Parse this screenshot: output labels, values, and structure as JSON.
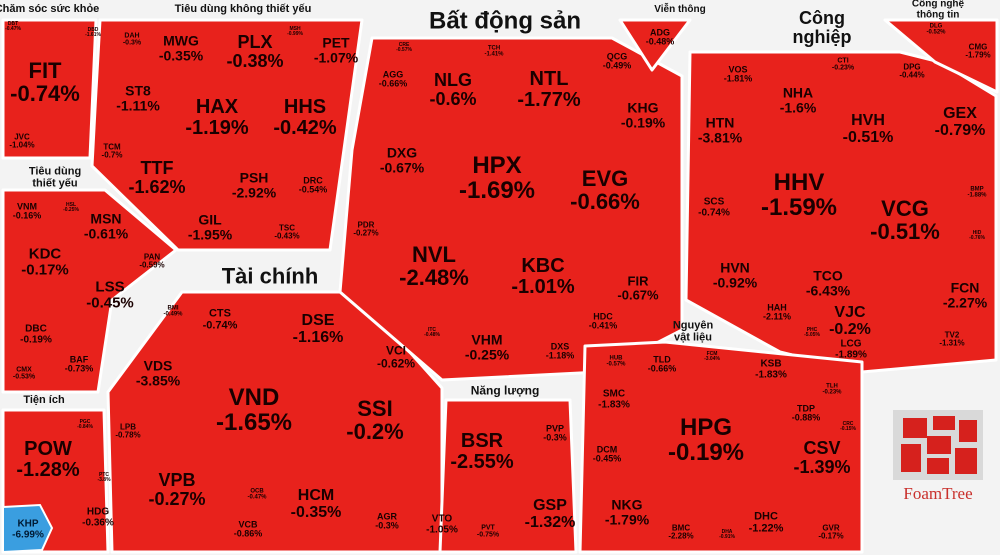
{
  "colors": {
    "down": "#e8221c",
    "up": "#3a9ee0",
    "background": "#f3f3f3"
  },
  "groups": [
    {
      "label": "Chăm sóc sức khỏe",
      "cells": [
        {
          "ticker": "FIT",
          "change": "-0.74%"
        },
        {
          "ticker": "JVC",
          "change": "-1.04%"
        },
        {
          "ticker": "DBD",
          "change": "-1.61%"
        },
        {
          "ticker": "DBT",
          "change": "-0.47%"
        }
      ]
    },
    {
      "label": "Tiêu dùng không thiết yếu",
      "cells": [
        {
          "ticker": "MWG",
          "change": "-0.35%"
        },
        {
          "ticker": "PLX",
          "change": "-0.38%"
        },
        {
          "ticker": "PET",
          "change": "-1.07%"
        },
        {
          "ticker": "DAH",
          "change": "-0.3%"
        },
        {
          "ticker": "ST8",
          "change": "-1.11%"
        },
        {
          "ticker": "HAX",
          "change": "-1.19%"
        },
        {
          "ticker": "HHS",
          "change": "-0.42%"
        },
        {
          "ticker": "TCM",
          "change": "-0.7%"
        },
        {
          "ticker": "TTF",
          "change": "-1.62%"
        },
        {
          "ticker": "PSH",
          "change": "-2.92%"
        },
        {
          "ticker": "DRC",
          "change": "-0.54%"
        },
        {
          "ticker": "GIL",
          "change": "-1.95%"
        },
        {
          "ticker": "TSC",
          "change": "-0.43%"
        },
        {
          "ticker": "MSH",
          "change": "-0.99%"
        }
      ]
    },
    {
      "label": "Tiêu dùng\nthiết yếu",
      "cells": [
        {
          "ticker": "VNM",
          "change": "-0.16%"
        },
        {
          "ticker": "HSL",
          "change": "-0.25%"
        },
        {
          "ticker": "MSN",
          "change": "-0.61%"
        },
        {
          "ticker": "KDC",
          "change": "-0.17%"
        },
        {
          "ticker": "PAN",
          "change": "-0.59%"
        },
        {
          "ticker": "LSS",
          "change": "-0.45%"
        },
        {
          "ticker": "DBC",
          "change": "-0.19%"
        },
        {
          "ticker": "BAF",
          "change": "-0.73%"
        },
        {
          "ticker": "CMX",
          "change": "-0.53%"
        }
      ]
    },
    {
      "label": "Tiện ích",
      "cells": [
        {
          "ticker": "POW",
          "change": "-1.28%"
        },
        {
          "ticker": "HDG",
          "change": "-0.36%"
        },
        {
          "ticker": "KHP",
          "change": "-6.99%"
        },
        {
          "ticker": "PGC",
          "change": "-0.84%"
        },
        {
          "ticker": "PTC",
          "change": "-3.8%"
        }
      ]
    },
    {
      "label": "Tài chính",
      "cells": [
        {
          "ticker": "BMI",
          "change": "-0.49%"
        },
        {
          "ticker": "CTS",
          "change": "-0.74%"
        },
        {
          "ticker": "DSE",
          "change": "-1.16%"
        },
        {
          "ticker": "VCI",
          "change": "-0.62%"
        },
        {
          "ticker": "VDS",
          "change": "-3.85%"
        },
        {
          "ticker": "VND",
          "change": "-1.65%"
        },
        {
          "ticker": "SSI",
          "change": "-0.2%"
        },
        {
          "ticker": "LPB",
          "change": "-0.78%"
        },
        {
          "ticker": "VPB",
          "change": "-0.27%"
        },
        {
          "ticker": "OCB",
          "change": "-0.47%"
        },
        {
          "ticker": "HCM",
          "change": "-0.35%"
        },
        {
          "ticker": "VCB",
          "change": "-0.86%"
        },
        {
          "ticker": "AGR",
          "change": "-0.3%"
        }
      ]
    },
    {
      "label": "Bất động sản",
      "cells": [
        {
          "ticker": "AGG",
          "change": "-0.66%"
        },
        {
          "ticker": "NLG",
          "change": "-0.6%"
        },
        {
          "ticker": "TCH",
          "change": "-1.41%"
        },
        {
          "ticker": "NTL",
          "change": "-1.77%"
        },
        {
          "ticker": "QCG",
          "change": "-0.49%"
        },
        {
          "ticker": "KHG",
          "change": "-0.19%"
        },
        {
          "ticker": "DXG",
          "change": "-0.67%"
        },
        {
          "ticker": "HPX",
          "change": "-1.69%"
        },
        {
          "ticker": "EVG",
          "change": "-0.66%"
        },
        {
          "ticker": "PDR",
          "change": "-0.27%"
        },
        {
          "ticker": "NVL",
          "change": "-2.48%"
        },
        {
          "ticker": "KBC",
          "change": "-1.01%"
        },
        {
          "ticker": "FIR",
          "change": "-0.67%"
        },
        {
          "ticker": "HDC",
          "change": "-0.41%"
        },
        {
          "ticker": "VHM",
          "change": "-0.25%"
        },
        {
          "ticker": "DXS",
          "change": "-1.18%"
        },
        {
          "ticker": "CRE",
          "change": "-0.57%"
        },
        {
          "ticker": "ITC",
          "change": "-0.48%"
        }
      ]
    },
    {
      "label": "Viễn thông",
      "cells": [
        {
          "ticker": "ADG",
          "change": "-0.48%"
        }
      ]
    },
    {
      "label": "Công\nnghiệp",
      "cells": [
        {
          "ticker": "VOS",
          "change": "-1.81%"
        },
        {
          "ticker": "NHA",
          "change": "-1.6%"
        },
        {
          "ticker": "CTI",
          "change": "-0.23%"
        },
        {
          "ticker": "DPG",
          "change": "-0.44%"
        },
        {
          "ticker": "HVH",
          "change": "-0.51%"
        },
        {
          "ticker": "GEX",
          "change": "-0.79%"
        },
        {
          "ticker": "HTN",
          "change": "-3.81%"
        },
        {
          "ticker": "HHV",
          "change": "-1.59%"
        },
        {
          "ticker": "VCG",
          "change": "-0.51%"
        },
        {
          "ticker": "SCS",
          "change": "-0.74%"
        },
        {
          "ticker": "BMP",
          "change": "-1.88%"
        },
        {
          "ticker": "HID",
          "change": "-0.76%"
        },
        {
          "ticker": "HVN",
          "change": "-0.92%"
        },
        {
          "ticker": "TCO",
          "change": "-6.43%"
        },
        {
          "ticker": "FCN",
          "change": "-2.27%"
        },
        {
          "ticker": "HAH",
          "change": "-2.11%"
        },
        {
          "ticker": "VJC",
          "change": "-0.2%"
        },
        {
          "ticker": "LCG",
          "change": "-1.89%"
        },
        {
          "ticker": "TV2",
          "change": "-1.31%"
        },
        {
          "ticker": "PHC",
          "change": "-5.05%"
        }
      ]
    },
    {
      "label": "Công nghệ thông tin",
      "cells": [
        {
          "ticker": "DLG",
          "change": "-0.52%"
        },
        {
          "ticker": "CMG",
          "change": "-1.79%"
        }
      ]
    },
    {
      "label": "Nguyên\nvật liệu",
      "cells": [
        {
          "ticker": "TLD",
          "change": "-0.66%"
        },
        {
          "ticker": "FCM",
          "change": "-3.04%"
        },
        {
          "ticker": "KSB",
          "change": "-1.83%"
        },
        {
          "ticker": "HUB",
          "change": "-0.57%"
        },
        {
          "ticker": "SMC",
          "change": "-1.83%"
        },
        {
          "ticker": "TDP",
          "change": "-0.88%"
        },
        {
          "ticker": "TLH",
          "change": "-0.23%"
        },
        {
          "ticker": "CRC",
          "change": "-0.15%"
        },
        {
          "ticker": "DCM",
          "change": "-0.45%"
        },
        {
          "ticker": "HPG",
          "change": "-0.19%"
        },
        {
          "ticker": "CSV",
          "change": "-1.39%"
        },
        {
          "ticker": "NKG",
          "change": "-1.79%"
        },
        {
          "ticker": "BMC",
          "change": "-2.28%"
        },
        {
          "ticker": "DHA",
          "change": "-0.91%"
        },
        {
          "ticker": "DHC",
          "change": "-1.22%"
        },
        {
          "ticker": "GVR",
          "change": "-0.17%"
        }
      ]
    },
    {
      "label": "Năng lượng",
      "cells": [
        {
          "ticker": "BSR",
          "change": "-2.55%"
        },
        {
          "ticker": "PVP",
          "change": "-0.3%"
        },
        {
          "ticker": "GSP",
          "change": "-1.32%"
        },
        {
          "ticker": "VTO",
          "change": "-1.05%"
        },
        {
          "ticker": "PVT",
          "change": "-0.75%"
        }
      ]
    }
  ],
  "logo": {
    "text": "FoamTree"
  }
}
